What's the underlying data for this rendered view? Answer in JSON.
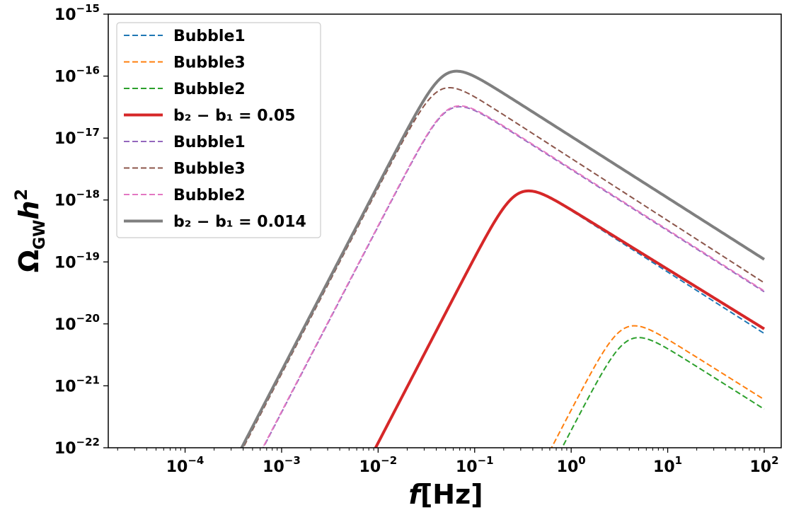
{
  "chart_data": {
    "type": "line",
    "title": "",
    "xlabel": "f [Hz]",
    "ylabel": "Ω_GW h^2",
    "xscale": "log",
    "yscale": "log",
    "xlim": [
      1.6e-05,
      150
    ],
    "ylim": [
      1e-22,
      1e-15
    ],
    "legend_position": "upper-left",
    "x_tick_exponents": [
      -4,
      -3,
      -2,
      -1,
      0,
      1,
      2
    ],
    "y_tick_exponents": [
      -22,
      -21,
      -20,
      -19,
      -18,
      -17,
      -16,
      -15
    ],
    "series": [
      {
        "name": "Bubble1",
        "color": "#1f77b4",
        "style": "dashed",
        "peak_f": 0.36,
        "peak_omega": 1.4e-18,
        "low_slope": 3,
        "high_slope": -1,
        "high_end": 7e-21,
        "f_max": 100
      },
      {
        "name": "Bubble3",
        "color": "#ff7f0e",
        "style": "dashed",
        "peak_f": 4.5,
        "peak_omega": 9.3e-21,
        "low_slope": 3,
        "high_slope": -1,
        "high_end": 6e-22,
        "f_max": 100
      },
      {
        "name": "Bubble2",
        "color": "#2ca02c",
        "style": "dashed",
        "peak_f": 5.0,
        "peak_omega": 6e-21,
        "low_slope": 3,
        "high_slope": -1,
        "high_end": 4.2e-22,
        "f_max": 100
      },
      {
        "name": "b₂ − b₁ = 0.05",
        "color": "#d62728",
        "style": "solid",
        "peak_f": 0.36,
        "peak_omega": 1.4e-18,
        "low_slope": 3,
        "high_slope": -1,
        "high_end": 8.3e-21,
        "f_max": 100
      },
      {
        "name": "Bubble1",
        "color": "#9467bd",
        "style": "dashed",
        "peak_f": 0.07,
        "peak_omega": 3.2e-17,
        "low_slope": 3,
        "high_slope": -1,
        "high_end": 3.3e-20,
        "f_max": 100
      },
      {
        "name": "Bubble3",
        "color": "#8c564b",
        "style": "dashed",
        "peak_f": 0.055,
        "peak_omega": 6.5e-17,
        "low_slope": 3,
        "high_slope": -1,
        "high_end": 4.6e-20,
        "f_max": 100
      },
      {
        "name": "Bubble2",
        "color": "#e377c2",
        "style": "dashed",
        "peak_f": 0.07,
        "peak_omega": 3.3e-17,
        "low_slope": 3,
        "high_slope": -1,
        "high_end": 3.4e-20,
        "f_max": 100
      },
      {
        "name": "b₂ − b₁ = 0.014",
        "color": "#7f7f7f",
        "style": "solid",
        "peak_f": 0.065,
        "peak_omega": 1.2e-16,
        "low_slope": 3,
        "high_slope": -1,
        "high_end": 1.1e-19,
        "f_max": 100
      }
    ]
  }
}
